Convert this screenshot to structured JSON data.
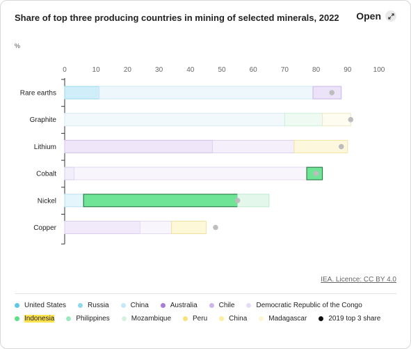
{
  "header": {
    "title": "Share of top three producing countries in mining of selected minerals, 2022",
    "open_label": "Open",
    "unit": "%"
  },
  "licence": "IEA. Licence: CC BY 4.0",
  "legend": [
    {
      "label": "United States",
      "color": "#5fc7e8"
    },
    {
      "label": "Russia",
      "color": "#8fd8ef"
    },
    {
      "label": "China",
      "color": "#c4e9f6"
    },
    {
      "label": "Australia",
      "color": "#a87bd8"
    },
    {
      "label": "Chile",
      "color": "#cfb6ec"
    },
    {
      "label": "Democratic Republic of the Congo",
      "color": "#e6dcf6"
    },
    {
      "label": "Indonesia",
      "color": "#5ee08a",
      "highlight": true
    },
    {
      "label": "Philippines",
      "color": "#9ce9bd"
    },
    {
      "label": "Mozambique",
      "color": "#d3f3df"
    },
    {
      "label": "Peru",
      "color": "#f8e27a"
    },
    {
      "label": "China",
      "color": "#fbee9f"
    },
    {
      "label": "Madagascar",
      "color": "#fdf6d3"
    },
    {
      "label": "2019 top 3 share",
      "color": "#111111"
    }
  ],
  "chart_data": {
    "type": "bar",
    "orientation": "horizontal",
    "stacked": true,
    "xlim": [
      0,
      100
    ],
    "xticks": [
      0,
      10,
      20,
      30,
      40,
      50,
      60,
      70,
      80,
      90,
      100
    ],
    "categories": [
      "Rare earths",
      "Graphite",
      "Lithium",
      "Cobalt",
      "Nickel",
      "Copper"
    ],
    "rows": [
      {
        "category": "Rare earths",
        "segments": [
          {
            "country": "United States",
            "value": 11,
            "color": "#d0eef9",
            "stroke": "#9dd8ee"
          },
          {
            "country": "China",
            "value": 68,
            "color": "#eef8fc",
            "stroke": "#cfe9f4"
          },
          {
            "country": "Australia",
            "value": 9,
            "color": "#ece3f8",
            "stroke": "#c9b6ea"
          }
        ],
        "share_2019": 85
      },
      {
        "category": "Graphite",
        "segments": [
          {
            "country": "China",
            "value": 70,
            "color": "#f2f9fc",
            "stroke": "#d6ebf3"
          },
          {
            "country": "Mozambique",
            "value": 12,
            "color": "#eefaf2",
            "stroke": "#cdeed9"
          },
          {
            "country": "Madagascar",
            "value": 9,
            "color": "#fefcf0",
            "stroke": "#efe8c4"
          }
        ],
        "share_2019": 91
      },
      {
        "category": "Lithium",
        "segments": [
          {
            "country": "Australia",
            "value": 47,
            "color": "#efe7f9",
            "stroke": "#d2c0ee"
          },
          {
            "country": "Chile",
            "value": 26,
            "color": "#f4effb",
            "stroke": "#ddd0f1"
          },
          {
            "country": "China",
            "value": 17,
            "color": "#fdf8dd",
            "stroke": "#f0e3a4"
          }
        ],
        "share_2019": 88
      },
      {
        "category": "Cobalt",
        "segments": [
          {
            "country": "Russia",
            "value": 3,
            "color": "#f2eefa",
            "stroke": "#d6cdee"
          },
          {
            "country": "Democratic Republic of the Congo",
            "value": 74,
            "color": "#f8f5fc",
            "stroke": "#e3dbf3"
          },
          {
            "country": "Indonesia",
            "value": 5,
            "color": "#6fe396",
            "stroke": "#1b6b3a"
          }
        ],
        "share_2019": 80
      },
      {
        "category": "Nickel",
        "segments": [
          {
            "country": "Russia",
            "value": 6,
            "color": "#e4f5fb",
            "stroke": "#b9e2f1"
          },
          {
            "country": "Indonesia",
            "value": 49,
            "color": "#6fe396",
            "stroke": "#1b6b3a"
          },
          {
            "country": "Philippines",
            "value": 10,
            "color": "#e3f8ea",
            "stroke": "#bfe9cf"
          }
        ],
        "share_2019": 55
      },
      {
        "category": "Copper",
        "segments": [
          {
            "country": "Chile",
            "value": 24,
            "color": "#f1eafa",
            "stroke": "#dacdf0"
          },
          {
            "country": "Democratic Republic of the Congo",
            "value": 10,
            "color": "#f8f5fc",
            "stroke": "#e3dbf3"
          },
          {
            "country": "Peru",
            "value": 11,
            "color": "#fdf8d8",
            "stroke": "#f0e1a0"
          }
        ],
        "share_2019": 48
      }
    ]
  }
}
